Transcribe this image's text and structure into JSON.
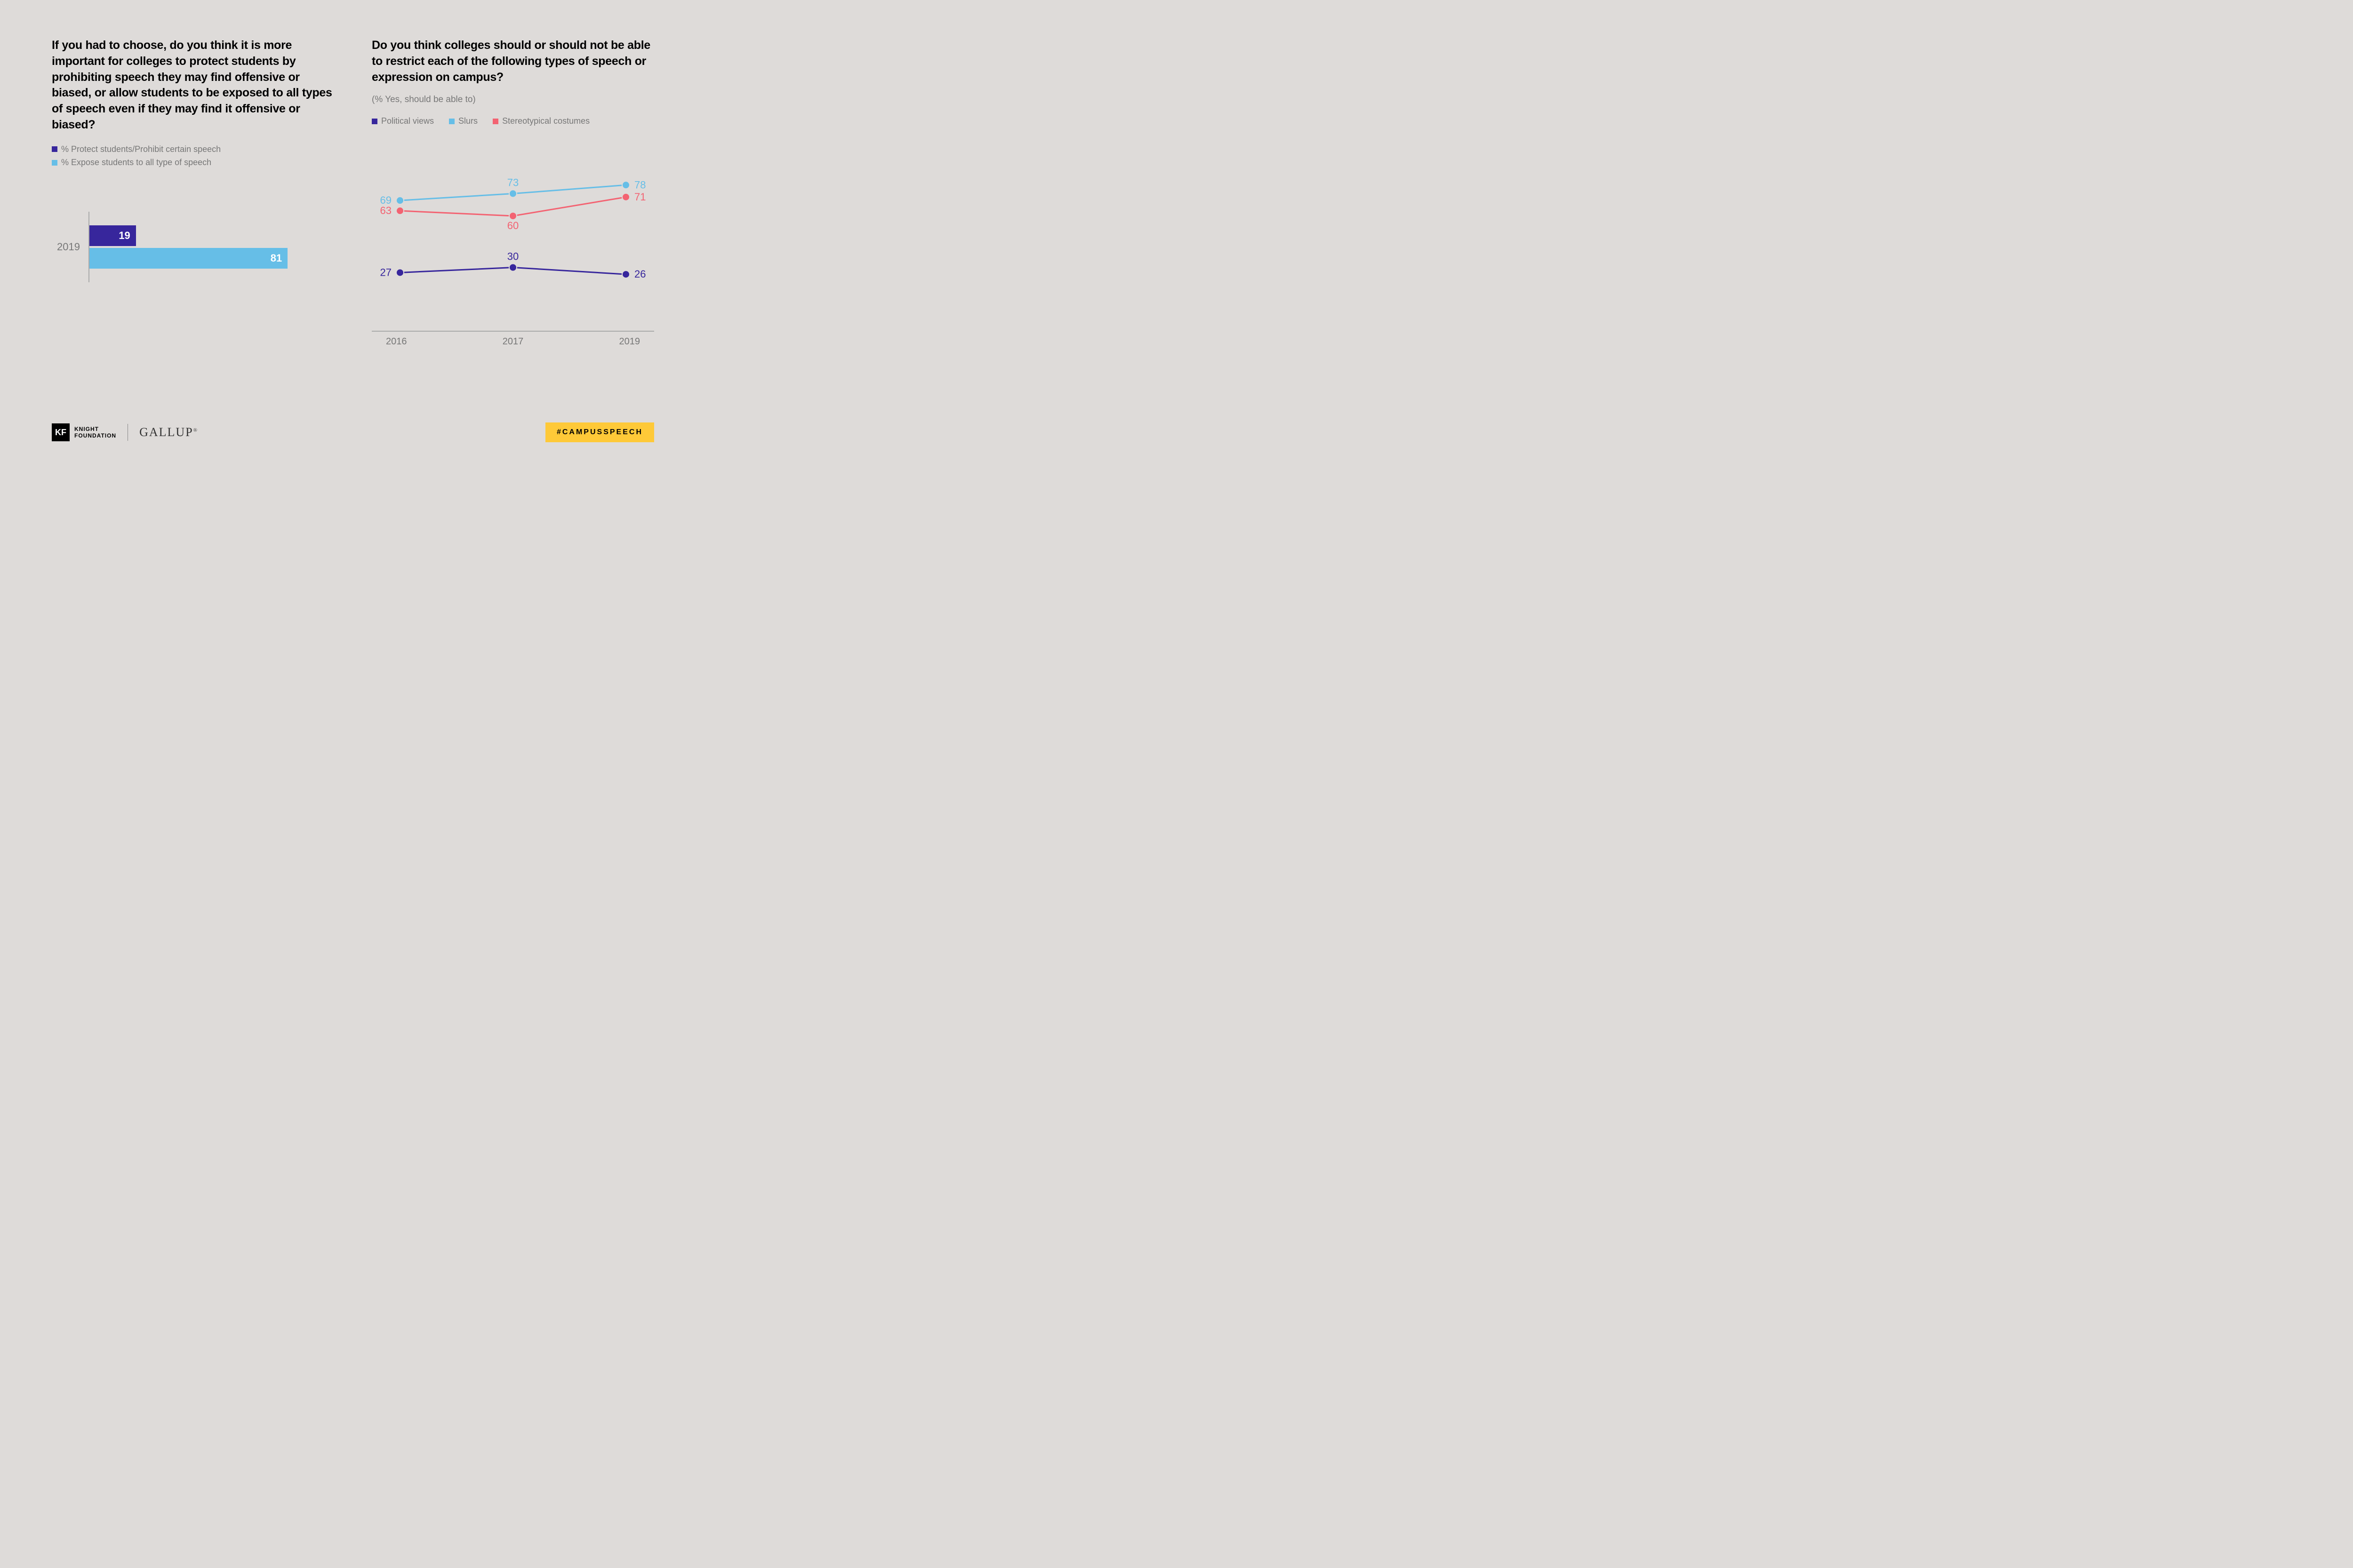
{
  "background_color": "#dedbd9",
  "left_panel": {
    "question": "If you had to choose, do you think it is more important for colleges to protect students by prohibiting speech they may find offensive or biased, or allow students to be exposed to all types of speech even if they may find it offensive or biased?",
    "legend": [
      {
        "label": "% Protect students/Prohibit certain speech",
        "color": "#37269c"
      },
      {
        "label": "% Expose students to all type of speech",
        "color": "#66bee7"
      }
    ],
    "bar_chart": {
      "type": "bar-horizontal",
      "year_label": "2019",
      "axis_color": "#aaaaaa",
      "max_value": 100,
      "bars": [
        {
          "value": 19,
          "color": "#37269c",
          "text_color": "#ffffff"
        },
        {
          "value": 81,
          "color": "#66bee7",
          "text_color": "#ffffff"
        }
      ]
    }
  },
  "right_panel": {
    "question": "Do you think colleges should or should not be able to restrict each of the following types of speech or expression on campus?",
    "subtitle": "(% Yes, should be able to)",
    "legend": [
      {
        "label": "Political views",
        "color": "#37269c"
      },
      {
        "label": "Slurs",
        "color": "#66bee7"
      },
      {
        "label": "Stereotypical costumes",
        "color": "#f36372"
      }
    ],
    "line_chart": {
      "type": "line",
      "x_labels": [
        "2016",
        "2017",
        "2019"
      ],
      "y_min": 0,
      "y_max": 100,
      "axis_color": "#aaaaaa",
      "marker_radius": 8,
      "line_width": 3,
      "series": [
        {
          "name": "Political views",
          "color": "#37269c",
          "values": [
            27,
            30,
            26
          ],
          "label_pos": [
            "left",
            "above",
            "right"
          ]
        },
        {
          "name": "Slurs",
          "color": "#66bee7",
          "values": [
            69,
            73,
            78
          ],
          "label_pos": [
            "left",
            "above",
            "right"
          ]
        },
        {
          "name": "Stereotypical costumes",
          "color": "#f36372",
          "values": [
            63,
            60,
            71
          ],
          "label_pos": [
            "left",
            "below",
            "right"
          ]
        }
      ]
    }
  },
  "footer": {
    "kf_square": "KF",
    "kf_line1": "KNIGHT",
    "kf_line2": "FOUNDATION",
    "gallup": "GALLUP",
    "hashtag": "#CAMPUSSPEECH",
    "hashtag_bg": "#fec938"
  }
}
